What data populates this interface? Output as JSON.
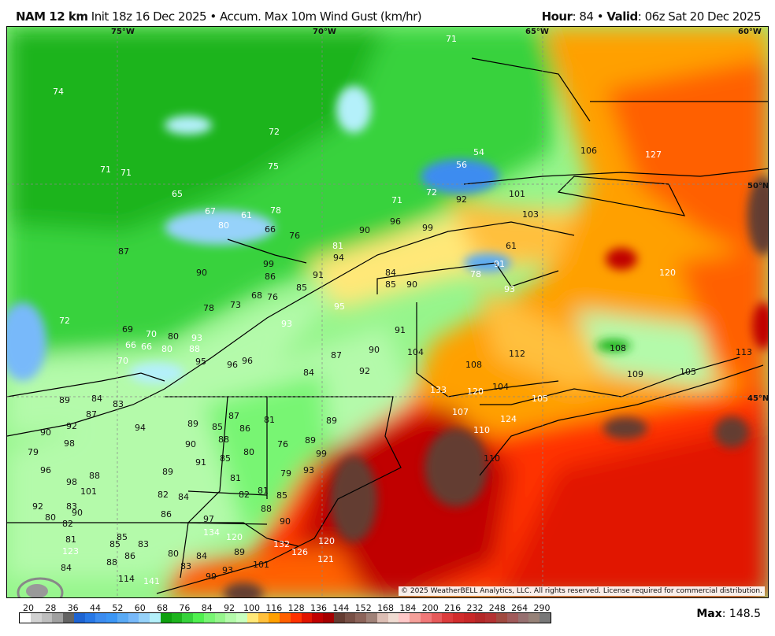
{
  "header": {
    "model": "NAM 12 km",
    "description": "Init 18z 16 Dec 2025 • Accum. Max 10m Wind Gust (km/hr)",
    "hour_label": "Hour",
    "hour_value": ": 84 • ",
    "valid_label": "Valid",
    "valid_value": ": 06z Sat 20 Dec 2025"
  },
  "map": {
    "copyright": "© 2025 WeatherBELL Analytics, LLC. All rights reserved. License required for commercial distribution.",
    "logo": "WeatherBELL",
    "grid_labels": [
      "75°W",
      "70°W",
      "65°W",
      "60°W",
      "50°N",
      "45°N"
    ],
    "values": [
      71,
      74,
      72,
      71,
      71,
      65,
      67,
      61,
      80,
      66,
      78,
      76,
      75,
      81,
      71,
      72,
      92,
      101,
      106,
      127,
      54,
      56,
      90,
      96,
      99,
      103,
      87,
      90,
      99,
      86,
      94,
      91,
      84,
      85,
      90,
      78,
      73,
      68,
      76,
      85,
      95,
      93,
      78,
      61,
      91,
      93,
      120,
      72,
      69,
      70,
      66,
      66,
      70,
      80,
      88,
      93,
      80,
      95,
      96,
      96,
      87,
      90,
      84,
      92,
      91,
      104,
      108,
      112,
      108,
      109,
      105,
      113,
      89,
      84,
      83,
      87,
      92,
      90,
      98,
      79,
      94,
      89,
      87,
      85,
      86,
      81,
      88,
      89,
      90,
      91,
      85,
      80,
      76,
      89,
      99,
      93,
      96,
      98,
      88,
      101,
      83,
      89,
      82,
      79,
      81,
      81,
      82,
      85,
      84,
      86,
      88,
      90,
      92,
      90,
      82,
      80,
      81,
      85,
      97,
      134,
      120,
      132,
      120,
      126,
      121,
      101,
      93,
      99,
      89,
      84,
      83,
      80,
      83,
      85,
      86,
      84,
      88,
      114,
      123,
      141,
      133,
      120,
      107,
      110,
      110,
      104,
      124,
      105
    ],
    "max_label": "Max",
    "max_value": ": 148.5"
  },
  "colorbar": {
    "ticks": [
      "20",
      "28",
      "36",
      "44",
      "52",
      "60",
      "68",
      "76",
      "84",
      "92",
      "100",
      "116",
      "128",
      "136",
      "144",
      "152",
      "168",
      "184",
      "200",
      "216",
      "232",
      "248",
      "264",
      "290"
    ],
    "colors": [
      "#ffffff",
      "#d2d2d2",
      "#bebebe",
      "#a0a0a0",
      "#646464",
      "#1e64d2",
      "#2878e6",
      "#3c8cf0",
      "#3c96f5",
      "#5aaaf5",
      "#78b9fa",
      "#96d2fa",
      "#b4f0fa",
      "#0fa00f",
      "#1eb41e",
      "#37d23c",
      "#50f050",
      "#78f573",
      "#96f58c",
      "#b4faaa",
      "#c8ffbe",
      "#ffe878",
      "#ffc03c",
      "#ffa000",
      "#ff6000",
      "#ff3200",
      "#e11400",
      "#c00000",
      "#a50000",
      "#643c32",
      "#785046",
      "#8c645a",
      "#a08278",
      "#dcbeb4",
      "#f0dcd2",
      "#ffc8c8",
      "#f5a09a",
      "#f07878",
      "#e65a5a",
      "#dc3c3c",
      "#d22d2d",
      "#c82828",
      "#b42828",
      "#b43232",
      "#a04a40",
      "#a05a5a",
      "#967070",
      "#968278",
      "#787878"
    ]
  }
}
